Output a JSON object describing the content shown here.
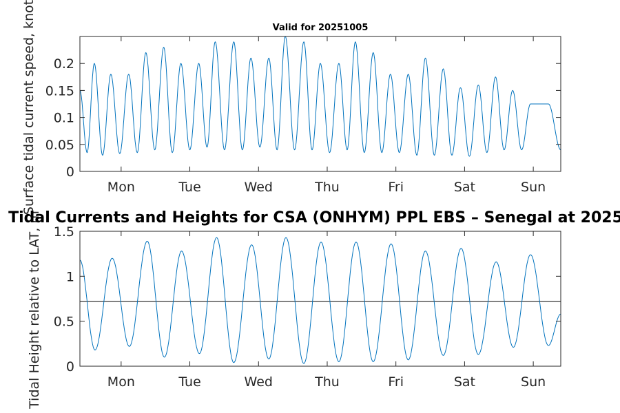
{
  "chart_data": [
    {
      "type": "line",
      "title": "Valid for 20251005",
      "ylabel": "Surface tidal current speed, knots",
      "xlabel": "",
      "day_labels": [
        "Mon",
        "Tue",
        "Wed",
        "Thu",
        "Fri",
        "Sat",
        "Sun"
      ],
      "xlim": [
        0,
        7
      ],
      "ylim": [
        0,
        0.25
      ],
      "yticks": [
        0,
        0.05,
        0.1,
        0.15,
        0.2
      ],
      "ytick_labels": [
        "0",
        "0.05",
        "0.1",
        "0.15",
        "0.2"
      ],
      "series": [
        {
          "name": "current speed",
          "color": "#0072BD",
          "x": [
            0.0,
            0.21,
            0.45,
            0.71,
            0.96,
            1.22,
            1.47,
            1.73,
            1.97,
            2.24,
            2.49,
            2.75,
            2.99,
            3.26,
            3.5,
            3.77,
            4.01,
            4.27,
            4.52,
            4.78,
            5.03,
            5.29,
            5.54,
            5.8,
            6.05,
            6.3,
            6.56,
            6.82,
            7.0
          ],
          "y": [
            0.15,
            0.2,
            0.18,
            0.18,
            0.22,
            0.23,
            0.2,
            0.2,
            0.24,
            0.24,
            0.21,
            0.21,
            0.25,
            0.24,
            0.2,
            0.2,
            0.24,
            0.22,
            0.18,
            0.18,
            0.21,
            0.19,
            0.155,
            0.16,
            0.175,
            0.15,
            0.125,
            0.125,
            0.04
          ],
          "troughs": [
            0.035,
            0.03,
            0.033,
            0.035,
            0.04,
            0.035,
            0.04,
            0.045,
            0.04,
            0.04,
            0.045,
            0.04,
            0.04,
            0.04,
            0.035,
            0.04,
            0.035,
            0.035,
            0.035,
            0.03,
            0.03,
            0.03,
            0.028,
            0.035,
            0.04
          ]
        }
      ]
    },
    {
      "type": "line",
      "title": "Tidal Currents and Heights for CSA (ONHYM) PPL EBS  – Senegal at 2025",
      "ylabel": "Tidal Height relative to LAT, m",
      "xlabel": "",
      "day_labels": [
        "Mon",
        "Tue",
        "Wed",
        "Thu",
        "Fri",
        "Sat",
        "Sun"
      ],
      "xlim": [
        0,
        7
      ],
      "ylim": [
        0,
        1.5
      ],
      "yticks": [
        0,
        0.5,
        1,
        1.5
      ],
      "ytick_labels": [
        "0",
        "0.5",
        "1",
        "1.5"
      ],
      "reference_line": 0.72,
      "series": [
        {
          "name": "tidal height",
          "color": "#0072BD",
          "x": [
            0.0,
            0.22,
            0.47,
            0.72,
            0.98,
            1.23,
            1.48,
            1.74,
            1.99,
            2.24,
            2.5,
            2.75,
            3.0,
            3.26,
            3.51,
            3.77,
            4.02,
            4.27,
            4.53,
            4.78,
            5.03,
            5.29,
            5.55,
            5.8,
            6.06,
            6.31,
            6.56,
            6.82,
            7.0
          ],
          "y": [
            1.18,
            0.18,
            1.2,
            0.22,
            1.39,
            0.1,
            1.28,
            0.14,
            1.43,
            0.04,
            1.35,
            0.08,
            1.43,
            0.03,
            1.38,
            0.05,
            1.38,
            0.05,
            1.36,
            0.07,
            1.28,
            0.12,
            1.31,
            0.13,
            1.16,
            0.21,
            1.24,
            0.23,
            0.58
          ]
        }
      ]
    }
  ]
}
